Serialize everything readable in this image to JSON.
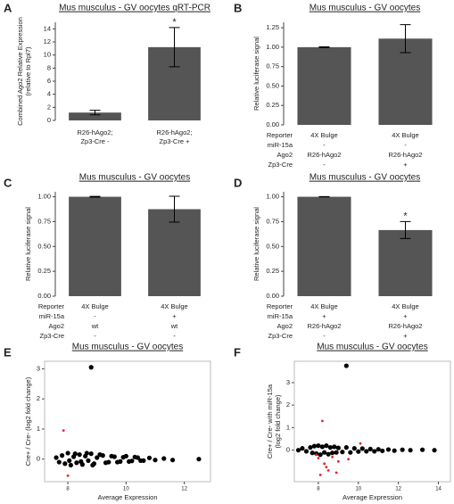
{
  "chart_data": [
    {
      "type": "bar",
      "panel_label": "A",
      "title": "Mus musculus - GV oocytes qRT-PCR",
      "ylabel": [
        "Combined Ago2 Relative Expression",
        "(relative to Rpl7)"
      ],
      "categories": [
        [
          "R26-hAgo2;",
          "Zp3-Cre -"
        ],
        [
          "R26-hAgo2;",
          "Zp3-Cre +"
        ]
      ],
      "values": [
        1.2,
        11.2
      ],
      "errors": [
        0.35,
        3.0
      ],
      "significance": [
        null,
        "*"
      ],
      "color": "#555555",
      "ylim": [
        0,
        15
      ],
      "yticks": [
        0,
        2,
        4,
        6,
        8,
        10,
        12,
        14
      ]
    },
    {
      "type": "bar",
      "panel_label": "B",
      "title": "Mus musculus - GV oocytes",
      "ylabel": [
        "Relative luciferase signal"
      ],
      "values": [
        1.0,
        1.11
      ],
      "errors": [
        0.005,
        0.18
      ],
      "significance": [
        null,
        null
      ],
      "color": "#555555",
      "ylim": [
        0,
        1.32
      ],
      "yticks": [
        {
          "value": 0,
          "label": "0.00"
        },
        {
          "value": 0.25,
          "label": "0.25"
        },
        {
          "value": 0.5,
          "label": "0.50"
        },
        {
          "value": 0.75,
          "label": "0.75"
        },
        {
          "value": 1,
          "label": "1.00"
        },
        {
          "value": 1.25,
          "label": "1.25"
        }
      ],
      "table": {
        "row_labels": [
          "Reporter",
          "miR-15a",
          "Ago2",
          "Zp3-Cre"
        ],
        "rows": [
          [
            "4X Bulge",
            "4X Bulge"
          ],
          [
            "-",
            "-"
          ],
          [
            "R26-hAgo2",
            "R26-hAgo2"
          ],
          [
            "-",
            "+"
          ]
        ]
      }
    },
    {
      "type": "bar",
      "panel_label": "C",
      "title": "Mus musculus - GV oocytes",
      "ylabel": [
        "Relative luciferase signal"
      ],
      "values": [
        1.0,
        0.875
      ],
      "errors": [
        0.004,
        0.13
      ],
      "significance": [
        null,
        null
      ],
      "color": "#555555",
      "ylim": [
        0,
        1.05
      ],
      "yticks": [
        {
          "value": 0,
          "label": "0.00"
        },
        {
          "value": 0.25,
          "label": "0.25"
        },
        {
          "value": 0.5,
          "label": "0.50"
        },
        {
          "value": 0.75,
          "label": "0.75"
        },
        {
          "value": 1,
          "label": "1.00"
        }
      ],
      "table": {
        "row_labels": [
          "Reporter",
          "miR-15a",
          "Ago2",
          "Zp3-Cre"
        ],
        "rows": [
          [
            "4X Bulge",
            "4X Bulge"
          ],
          [
            "-",
            "+"
          ],
          [
            "wt",
            "wt"
          ],
          [
            "-",
            "-"
          ]
        ]
      }
    },
    {
      "type": "bar",
      "panel_label": "D",
      "title": "Mus musculus - GV oocytes",
      "ylabel": [
        "Relative luciferase signal"
      ],
      "values": [
        1.0,
        0.665
      ],
      "errors": [
        0.002,
        0.085
      ],
      "significance": [
        null,
        "*"
      ],
      "color": "#555555",
      "ylim": [
        0,
        1.05
      ],
      "yticks": [
        {
          "value": 0,
          "label": "0.00"
        },
        {
          "value": 0.25,
          "label": "0.25"
        },
        {
          "value": 0.5,
          "label": "0.50"
        },
        {
          "value": 0.75,
          "label": "0.75"
        },
        {
          "value": 1,
          "label": "1.00"
        }
      ],
      "table": {
        "row_labels": [
          "Reporter",
          "miR-15a",
          "Ago2",
          "Zp3-Cre"
        ],
        "rows": [
          [
            "4X Bulge",
            "4X Bulge"
          ],
          [
            "+",
            "+"
          ],
          [
            "R26-hAgo2",
            "R26-hAgo2"
          ],
          [
            "-",
            "+"
          ]
        ]
      }
    },
    {
      "type": "scatter",
      "panel_label": "E",
      "title": "Mus musculus - GV oocytes",
      "xlabel": "Average Expression",
      "ylabel": [
        "Cre+ / Cre- (log2 fold change)"
      ],
      "xlim": [
        7.2,
        12.9
      ],
      "ylim": [
        -0.75,
        3.25
      ],
      "xticks": [
        8,
        10,
        12
      ],
      "yticks": [
        0,
        1,
        2,
        3
      ],
      "series": [
        {
          "color": "#000000",
          "x": [
            7.6,
            7.7,
            7.8,
            7.9,
            8.0,
            8.05,
            8.1,
            8.2,
            8.25,
            8.3,
            8.4,
            8.45,
            8.5,
            8.6,
            8.65,
            8.7,
            8.8,
            8.85,
            8.9,
            9.0,
            9.1,
            9.2,
            9.3,
            9.4,
            9.5,
            9.6,
            9.7,
            9.8,
            9.9,
            10.0,
            10.1,
            10.2,
            10.3,
            10.4,
            10.5,
            10.6,
            10.8,
            11.0,
            11.3,
            11.6,
            12.5,
            8.8
          ],
          "y": [
            0.05,
            -0.1,
            0.12,
            -0.15,
            0.2,
            -0.05,
            -0.2,
            0.08,
            0.18,
            -0.12,
            0.15,
            -0.08,
            -0.18,
            0.1,
            0.2,
            -0.05,
            0.18,
            -0.2,
            -0.15,
            0.05,
            0.15,
            0.12,
            -0.12,
            -0.1,
            0.1,
            0.08,
            -0.1,
            -0.08,
            0.06,
            0.1,
            -0.08,
            -0.06,
            0.07,
            0.05,
            -0.05,
            -0.05,
            0.04,
            -0.03,
            0.02,
            -0.03,
            0.0,
            3.05
          ]
        },
        {
          "color": "#e8202a",
          "x": [
            7.85,
            8.0
          ],
          "y": [
            0.95,
            -0.55
          ]
        }
      ]
    },
    {
      "type": "scatter",
      "panel_label": "F",
      "title": "Mus musculus - GV oocytes",
      "xlabel": "Average Expression",
      "ylabel": [
        "Cre+ / Cre- with miR-15a",
        "(log2 fold change)"
      ],
      "xlim": [
        6.8,
        14.6
      ],
      "ylim": [
        -1.4,
        3.95
      ],
      "xticks": [
        8,
        10,
        12,
        14
      ],
      "yticks": [
        0,
        1,
        2,
        3
      ],
      "series": [
        {
          "color": "#000000",
          "x": [
            7.0,
            7.2,
            7.4,
            7.6,
            7.7,
            7.8,
            7.9,
            8.0,
            8.1,
            8.2,
            8.3,
            8.4,
            8.5,
            8.6,
            8.7,
            8.8,
            8.9,
            9.0,
            9.2,
            9.4,
            9.6,
            9.8,
            10.0,
            10.2,
            10.4,
            10.6,
            10.8,
            11.0,
            11.2,
            11.5,
            11.8,
            12.2,
            12.6,
            13.2,
            13.8,
            9.4
          ],
          "y": [
            0.0,
            0.08,
            -0.05,
            0.12,
            -0.12,
            0.18,
            -0.15,
            0.2,
            -0.2,
            0.15,
            -0.1,
            0.2,
            -0.18,
            0.12,
            -0.12,
            0.15,
            -0.1,
            0.1,
            -0.08,
            0.12,
            -0.1,
            0.08,
            -0.06,
            0.07,
            -0.05,
            0.05,
            -0.05,
            0.04,
            -0.03,
            0.03,
            -0.02,
            0.02,
            0.0,
            0.02,
            0.0,
            3.75
          ]
        },
        {
          "color": "#e8202a",
          "x": [
            8.2,
            7.9,
            8.0,
            8.3,
            8.5,
            8.1,
            8.7,
            9.0,
            9.5,
            8.4,
            8.9,
            10.1
          ],
          "y": [
            1.3,
            -0.2,
            -0.35,
            -0.6,
            -0.9,
            -1.1,
            -0.3,
            -0.5,
            -0.4,
            -0.75,
            -1.0,
            0.3
          ]
        }
      ]
    }
  ]
}
